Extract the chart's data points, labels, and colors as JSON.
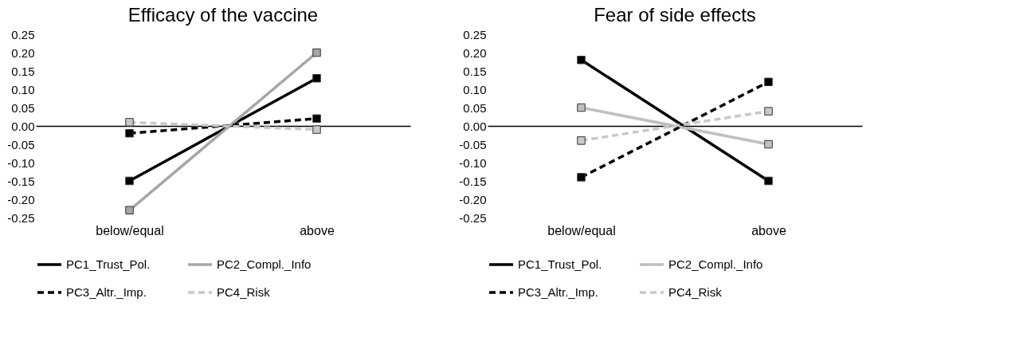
{
  "chart_data": [
    {
      "type": "line",
      "title": "Efficacy of the vaccine",
      "categories": [
        "below/equal",
        "above"
      ],
      "ylim": [
        -0.25,
        0.25
      ],
      "yticks": [
        -0.25,
        {
          "value": -0.2,
          "label": "-0.20"
        },
        -0.15,
        {
          "value": -0.1,
          "label": "-0.10"
        },
        -0.05,
        {
          "value": 0,
          "label": "0.00"
        },
        0.05,
        {
          "value": 0.1,
          "label": "0.10"
        },
        0.15,
        {
          "value": 0.2,
          "label": "0.20"
        },
        0.25
      ],
      "marker": "square",
      "legend": "bottom",
      "series": [
        {
          "name": "PC1_Trust_Pol.",
          "color": "#000000",
          "line_style": "solid",
          "values": [
            -0.15,
            0.13
          ]
        },
        {
          "name": "PC2_Compl._Info",
          "color": "#a6a6a6",
          "line_style": "solid",
          "values": [
            -0.23,
            0.2
          ]
        },
        {
          "name": "PC3_Altr._Imp.",
          "color": "#000000",
          "line_style": "dashed",
          "values": [
            -0.02,
            0.02
          ]
        },
        {
          "name": "PC4_Risk",
          "color": "#c8c8c8",
          "line_style": "dashed",
          "values": [
            0.01,
            -0.01
          ]
        }
      ]
    },
    {
      "type": "line",
      "title": "Fear of side effects",
      "categories": [
        "below/equal",
        "above"
      ],
      "ylim": [
        -0.25,
        0.25
      ],
      "yticks": [
        -0.25,
        {
          "value": -0.2,
          "label": "-0.20"
        },
        -0.15,
        {
          "value": -0.1,
          "label": "-0.10"
        },
        -0.05,
        {
          "value": 0,
          "label": "0.00"
        },
        0.05,
        {
          "value": 0.1,
          "label": "0.10"
        },
        0.15,
        {
          "value": 0.2,
          "label": "0.20"
        },
        0.25
      ],
      "marker": "square",
      "legend": "bottom",
      "series": [
        {
          "name": "PC1_Trust_Pol.",
          "color": "#000000",
          "line_style": "solid",
          "values": [
            0.18,
            -0.15
          ]
        },
        {
          "name": "PC2_Compl._Info",
          "color": "#bfbfbf",
          "line_style": "solid",
          "values": [
            0.05,
            -0.05
          ]
        },
        {
          "name": "PC3_Altr._Imp.",
          "color": "#000000",
          "line_style": "dashed",
          "values": [
            -0.14,
            0.12
          ]
        },
        {
          "name": "PC4_Risk",
          "color": "#c8c8c8",
          "line_style": "dashed",
          "values": [
            -0.04,
            0.04
          ]
        }
      ]
    }
  ]
}
